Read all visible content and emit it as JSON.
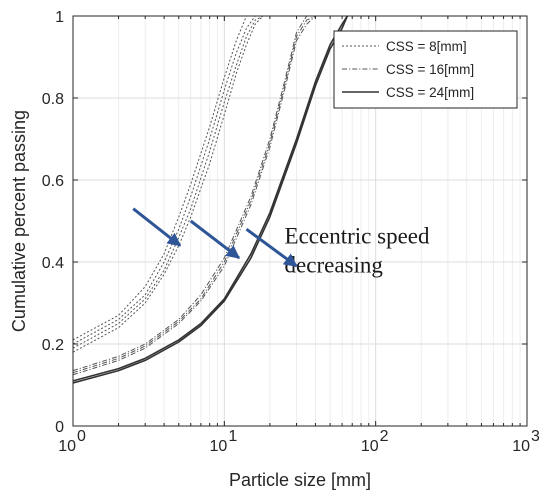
{
  "chart_data": {
    "type": "line",
    "xlabel": "Particle size [mm]",
    "ylabel": "Cumulative percent passing",
    "xscale": "log",
    "xlim": [
      1,
      1000
    ],
    "ylim": [
      0,
      1
    ],
    "grid": true,
    "x_ticks": [
      {
        "value": 1,
        "base": "10",
        "exp": "0"
      },
      {
        "value": 10,
        "base": "10",
        "exp": "1"
      },
      {
        "value": 100,
        "base": "10",
        "exp": "2"
      },
      {
        "value": 1000,
        "base": "10",
        "exp": "3"
      }
    ],
    "y_ticks": [
      {
        "value": 0,
        "label": "0"
      },
      {
        "value": 0.2,
        "label": "0.2"
      },
      {
        "value": 0.4,
        "label": "0.4"
      },
      {
        "value": 0.6,
        "label": "0.6"
      },
      {
        "value": 0.8,
        "label": "0.8"
      },
      {
        "value": 1,
        "label": "1"
      }
    ],
    "legend": {
      "position": "top-right",
      "entries": [
        {
          "label": "CSS = 8[mm]",
          "style": "dotted",
          "color": "#555555"
        },
        {
          "label": "CSS = 16[mm]",
          "style": "dashdot",
          "color": "#555555"
        },
        {
          "label": "CSS = 24[mm]",
          "style": "solid",
          "color": "#333333"
        }
      ]
    },
    "series": [
      {
        "group": "CSS = 8[mm]",
        "style": "dotted",
        "color": "#555555",
        "x": [
          1,
          2,
          3,
          4,
          5,
          6,
          8,
          10,
          12,
          14,
          16,
          18,
          20
        ],
        "y": [
          0.21,
          0.27,
          0.34,
          0.42,
          0.51,
          0.59,
          0.73,
          0.85,
          0.94,
          1.0,
          1.0,
          1.0,
          1.0
        ]
      },
      {
        "group": "CSS = 8[mm]",
        "style": "dotted",
        "color": "#555555",
        "x": [
          1,
          2,
          3,
          4,
          5,
          6,
          8,
          10,
          12,
          14,
          16,
          18,
          20
        ],
        "y": [
          0.2,
          0.26,
          0.32,
          0.4,
          0.48,
          0.56,
          0.7,
          0.82,
          0.91,
          0.97,
          1.0,
          1.0,
          1.0
        ]
      },
      {
        "group": "CSS = 8[mm]",
        "style": "dotted",
        "color": "#555555",
        "x": [
          1,
          2,
          3,
          4,
          5,
          6,
          8,
          10,
          12,
          14,
          16,
          18,
          20
        ],
        "y": [
          0.19,
          0.25,
          0.31,
          0.38,
          0.46,
          0.53,
          0.67,
          0.79,
          0.88,
          0.95,
          0.99,
          1.0,
          1.0
        ]
      },
      {
        "group": "CSS = 8[mm]",
        "style": "dotted",
        "color": "#555555",
        "x": [
          1,
          2,
          3,
          4,
          5,
          6,
          8,
          10,
          12,
          14,
          16,
          18,
          20
        ],
        "y": [
          0.18,
          0.24,
          0.3,
          0.37,
          0.44,
          0.51,
          0.64,
          0.76,
          0.86,
          0.93,
          0.98,
          1.0,
          1.0
        ]
      },
      {
        "group": "CSS = 16[mm]",
        "style": "dashdot",
        "color": "#555555",
        "x": [
          1,
          2,
          3,
          5,
          7,
          10,
          15,
          20,
          25,
          30,
          35,
          40
        ],
        "y": [
          0.135,
          0.17,
          0.2,
          0.26,
          0.32,
          0.41,
          0.56,
          0.7,
          0.84,
          0.96,
          1.0,
          1.0
        ]
      },
      {
        "group": "CSS = 16[mm]",
        "style": "dashdot",
        "color": "#555555",
        "x": [
          1,
          2,
          3,
          5,
          7,
          10,
          15,
          20,
          25,
          30,
          35,
          40
        ],
        "y": [
          0.13,
          0.165,
          0.195,
          0.255,
          0.31,
          0.4,
          0.55,
          0.69,
          0.83,
          0.95,
          0.99,
          1.0
        ]
      },
      {
        "group": "CSS = 16[mm]",
        "style": "dashdot",
        "color": "#555555",
        "x": [
          1,
          2,
          3,
          5,
          7,
          10,
          15,
          20,
          25,
          30,
          35,
          40
        ],
        "y": [
          0.125,
          0.16,
          0.19,
          0.25,
          0.305,
          0.39,
          0.54,
          0.68,
          0.82,
          0.94,
          0.98,
          1.0
        ]
      },
      {
        "group": "CSS = 24[mm]",
        "style": "solid",
        "color": "#333333",
        "x": [
          1,
          2,
          3,
          5,
          7,
          10,
          15,
          20,
          30,
          40,
          50,
          60,
          65
        ],
        "y": [
          0.11,
          0.14,
          0.165,
          0.21,
          0.25,
          0.31,
          0.42,
          0.52,
          0.7,
          0.84,
          0.93,
          0.98,
          1.0
        ]
      },
      {
        "group": "CSS = 24[mm]",
        "style": "solid",
        "color": "#333333",
        "x": [
          1,
          2,
          3,
          5,
          7,
          10,
          15,
          20,
          30,
          40,
          50,
          60,
          65
        ],
        "y": [
          0.105,
          0.135,
          0.16,
          0.205,
          0.245,
          0.305,
          0.41,
          0.51,
          0.69,
          0.83,
          0.92,
          0.97,
          1.0
        ]
      }
    ],
    "annotation": {
      "text_line1": "Eccentric speed",
      "text_line2": "decreasing",
      "arrow_color": "#2e5597",
      "arrows": [
        {
          "x1": 2.5,
          "y1": 0.53,
          "x2": 5.1,
          "y2": 0.44
        },
        {
          "x1": 6.0,
          "y1": 0.5,
          "x2": 12.5,
          "y2": 0.41
        },
        {
          "x1": 14.0,
          "y1": 0.48,
          "x2": 30.0,
          "y2": 0.39
        }
      ],
      "text_x": 25,
      "text_y1": 0.445,
      "text_y2": 0.375
    }
  }
}
